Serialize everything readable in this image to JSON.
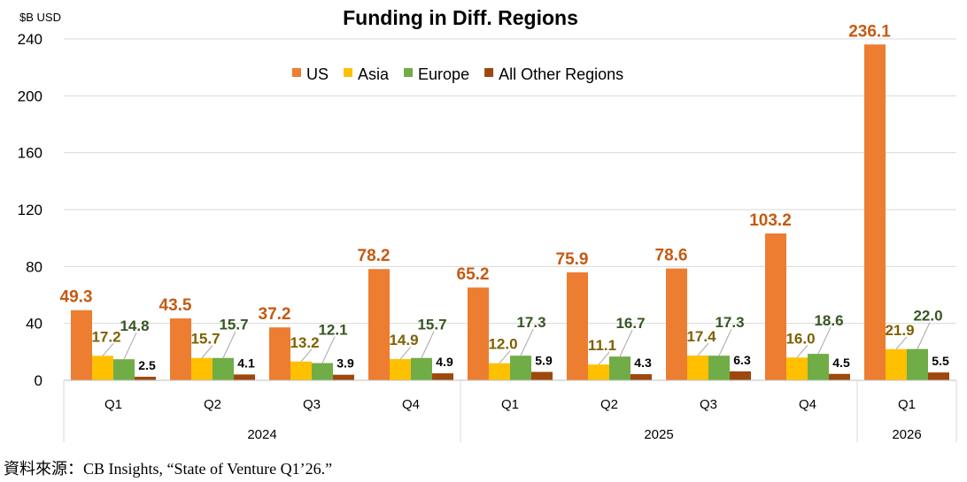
{
  "chart_data": {
    "type": "bar",
    "title": "Funding in Diff. Regions",
    "ylabel": "$B USD",
    "ylim": [
      0,
      240
    ],
    "yticks": [
      0,
      40,
      80,
      120,
      160,
      200,
      240
    ],
    "grid": true,
    "legend_position": "top-center",
    "categories": [
      "Q1",
      "Q2",
      "Q3",
      "Q4",
      "Q1",
      "Q2",
      "Q3",
      "Q4",
      "Q1"
    ],
    "years": [
      {
        "label": "2024",
        "count": 4
      },
      {
        "label": "2025",
        "count": 4
      },
      {
        "label": "2026",
        "count": 1
      }
    ],
    "series": [
      {
        "name": "US",
        "color": "#ED7D31",
        "label_color": "#C55A11",
        "values": [
          49.3,
          43.5,
          37.2,
          78.2,
          65.2,
          75.9,
          78.6,
          103.2,
          236.1
        ]
      },
      {
        "name": "Asia",
        "color": "#FFC000",
        "label_color": "#7F6000",
        "values": [
          17.2,
          15.7,
          13.2,
          14.9,
          12.0,
          11.1,
          17.4,
          16.0,
          21.9
        ]
      },
      {
        "name": "Europe",
        "color": "#70AD47",
        "label_color": "#375623",
        "values": [
          14.8,
          15.7,
          12.1,
          15.7,
          17.3,
          16.7,
          17.3,
          18.6,
          22.0
        ]
      },
      {
        "name": "All Other Regions",
        "color": "#9E480E",
        "label_color": "#000000",
        "values": [
          2.5,
          4.1,
          3.9,
          4.9,
          5.9,
          4.3,
          6.3,
          4.5,
          5.5
        ]
      }
    ]
  },
  "source": "資料來源：CB Insights, “State of Venture Q1’26.”"
}
